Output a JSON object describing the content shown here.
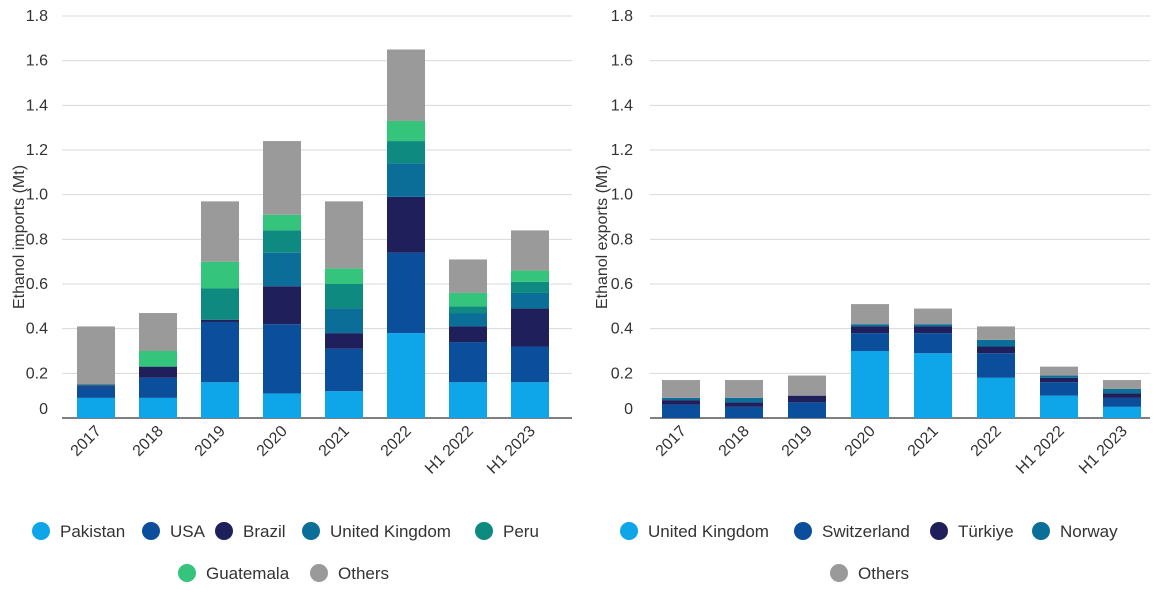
{
  "chart_data": [
    {
      "type": "bar",
      "stacked": true,
      "title": "",
      "xlabel": "",
      "ylabel": "Ethanol imports (Mt)",
      "ylim": [
        0,
        1.8
      ],
      "yticks": [
        "0",
        "0.2",
        "0.4",
        "0.6",
        "0.8",
        "1.0",
        "1.2",
        "1.4",
        "1.6",
        "1.8"
      ],
      "grid": true,
      "legend_position": "bottom",
      "categories": [
        "2017",
        "2018",
        "2019",
        "2020",
        "2021",
        "2022",
        "H1 2022",
        "H1 2023"
      ],
      "series": [
        {
          "name": "Pakistan",
          "color": "#0ea5e9",
          "values": [
            0.09,
            0.09,
            0.16,
            0.11,
            0.12,
            0.38,
            0.16,
            0.16
          ]
        },
        {
          "name": "USA",
          "color": "#0b4f9c",
          "values": [
            0.05,
            0.09,
            0.27,
            0.31,
            0.19,
            0.36,
            0.18,
            0.16
          ]
        },
        {
          "name": "Brazil",
          "color": "#1f1f5c",
          "values": [
            0.005,
            0.05,
            0.01,
            0.17,
            0.07,
            0.25,
            0.07,
            0.17
          ]
        },
        {
          "name": "United Kingdom",
          "color": "#0a6e99",
          "values": [
            0.005,
            0.0,
            0.0,
            0.15,
            0.11,
            0.15,
            0.06,
            0.07
          ]
        },
        {
          "name": "Peru",
          "color": "#0f8a80",
          "values": [
            0.0,
            0.0,
            0.14,
            0.1,
            0.11,
            0.1,
            0.03,
            0.05
          ]
        },
        {
          "name": "Guatemala",
          "color": "#34c47c",
          "values": [
            0.0,
            0.07,
            0.12,
            0.07,
            0.07,
            0.09,
            0.06,
            0.05
          ]
        },
        {
          "name": "Others",
          "color": "#9a9a9a",
          "values": [
            0.26,
            0.17,
            0.27,
            0.33,
            0.3,
            0.32,
            0.15,
            0.18
          ]
        }
      ]
    },
    {
      "type": "bar",
      "stacked": true,
      "title": "",
      "xlabel": "",
      "ylabel": "Ethanol exports (Mt)",
      "ylim": [
        0,
        1.8
      ],
      "yticks": [
        "0",
        "0.2",
        "0.4",
        "0.6",
        "0.8",
        "1.0",
        "1.2",
        "1.4",
        "1.6",
        "1.8"
      ],
      "grid": true,
      "legend_position": "bottom",
      "categories": [
        "2017",
        "2018",
        "2019",
        "2020",
        "2021",
        "2022",
        "H1 2022",
        "H1 2023"
      ],
      "series": [
        {
          "name": "United Kingdom",
          "color": "#0ea5e9",
          "values": [
            0.0,
            0.0,
            0.0,
            0.3,
            0.29,
            0.18,
            0.1,
            0.05
          ]
        },
        {
          "name": "Switzerland",
          "color": "#0b4f9c",
          "values": [
            0.06,
            0.05,
            0.07,
            0.08,
            0.09,
            0.11,
            0.06,
            0.04
          ]
        },
        {
          "name": "Türkiye",
          "color": "#1f1f5c",
          "values": [
            0.02,
            0.02,
            0.03,
            0.03,
            0.03,
            0.03,
            0.02,
            0.02
          ]
        },
        {
          "name": "Norway",
          "color": "#0a6e99",
          "values": [
            0.01,
            0.02,
            0.0,
            0.01,
            0.01,
            0.03,
            0.01,
            0.02
          ]
        },
        {
          "name": "Others",
          "color": "#9a9a9a",
          "values": [
            0.08,
            0.08,
            0.09,
            0.09,
            0.07,
            0.06,
            0.04,
            0.04
          ]
        }
      ]
    }
  ]
}
